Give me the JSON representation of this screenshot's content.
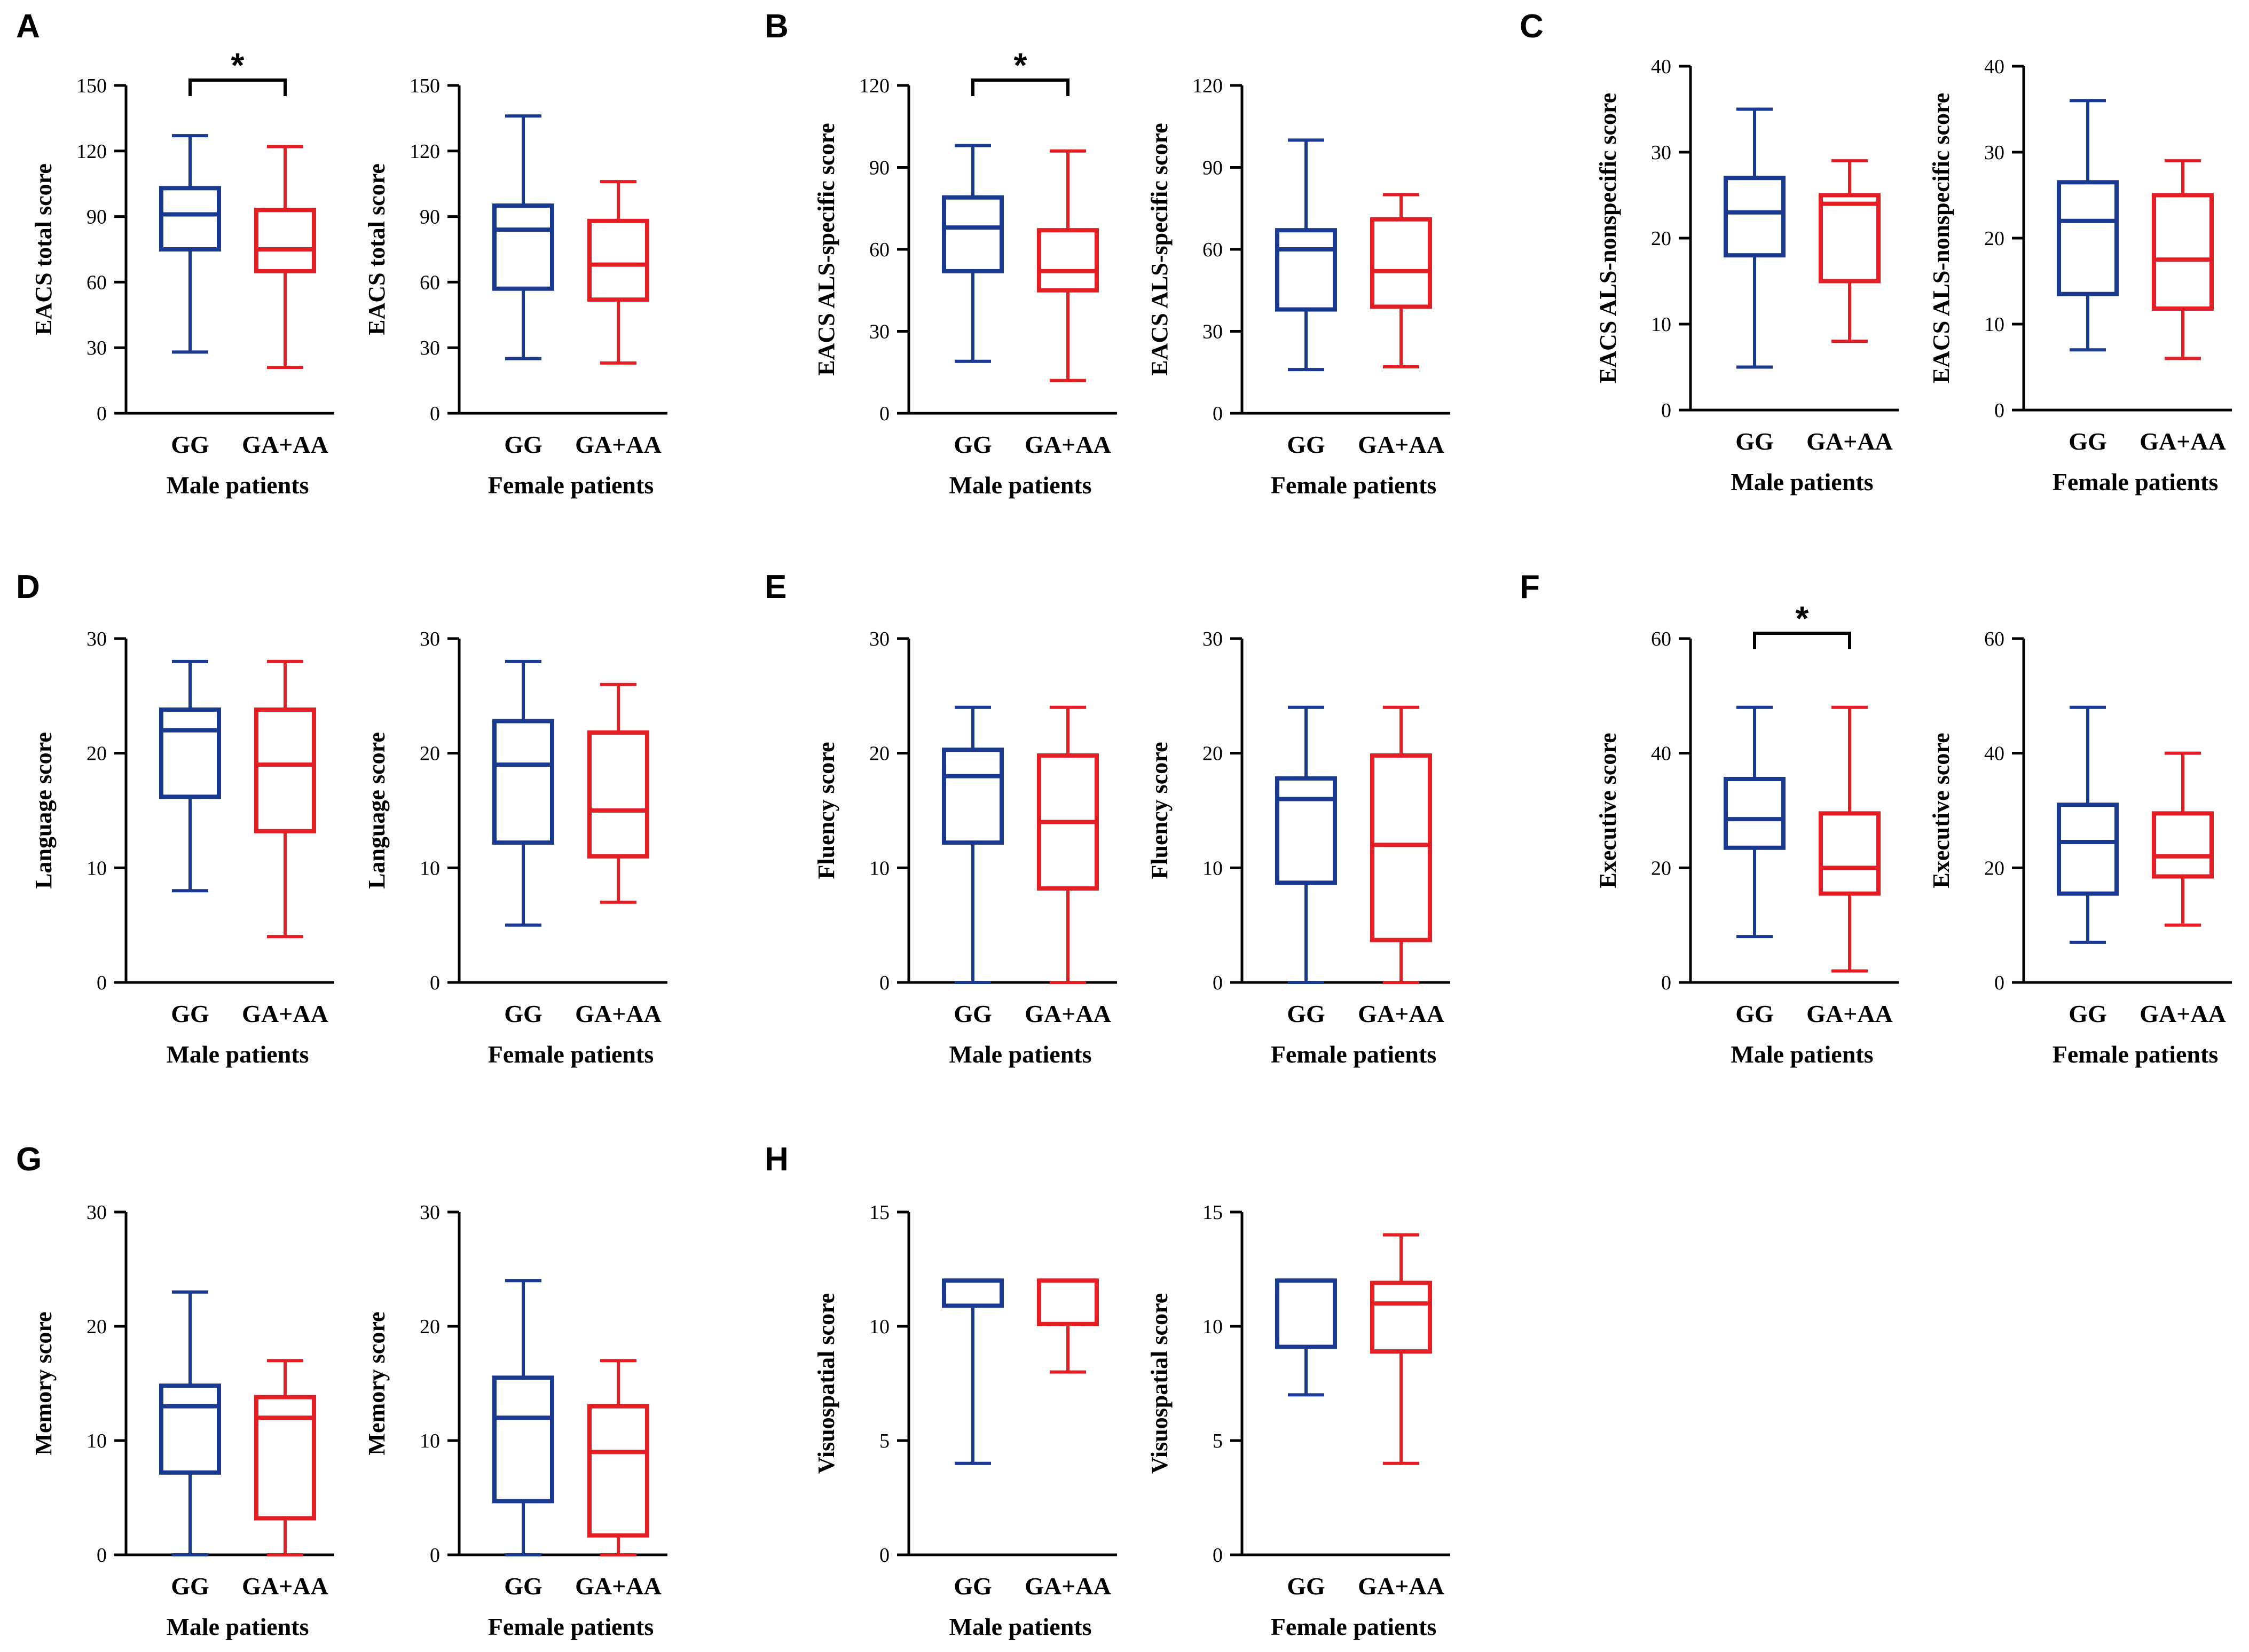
{
  "figure": {
    "colors": {
      "GG": "#1a3a8f",
      "GA+AA": "#e31e24",
      "axis": "#000000"
    }
  },
  "chart_data": [
    {
      "type": "box",
      "panel": "A",
      "group": "Male patients",
      "ylabel": "EACS total score",
      "ylim": [
        0,
        150
      ],
      "yticks": [
        0,
        30,
        60,
        90,
        120,
        150
      ],
      "categories": [
        "GG",
        "GA+AA"
      ],
      "boxes": [
        {
          "min": 28,
          "q1": 75,
          "median": 91,
          "q3": 103,
          "max": 127
        },
        {
          "min": 21,
          "q1": 65,
          "median": 75,
          "q3": 93,
          "max": 122
        }
      ],
      "significance": "*"
    },
    {
      "type": "box",
      "panel": "",
      "group": "Female patients",
      "ylabel": "EACS total score",
      "ylim": [
        0,
        150
      ],
      "yticks": [
        0,
        30,
        60,
        90,
        120,
        150
      ],
      "categories": [
        "GG",
        "GA+AA"
      ],
      "boxes": [
        {
          "min": 25,
          "q1": 57,
          "median": 84,
          "q3": 95,
          "max": 136
        },
        {
          "min": 23,
          "q1": 52,
          "median": 68,
          "q3": 88,
          "max": 106
        }
      ],
      "significance": ""
    },
    {
      "type": "box",
      "panel": "B",
      "group": "Male patients",
      "ylabel": "EACS ALS-specific score",
      "ylim": [
        0,
        120
      ],
      "yticks": [
        0,
        30,
        60,
        90,
        120
      ],
      "categories": [
        "GG",
        "GA+AA"
      ],
      "boxes": [
        {
          "min": 19,
          "q1": 52,
          "median": 68,
          "q3": 79,
          "max": 98
        },
        {
          "min": 12,
          "q1": 45,
          "median": 52,
          "q3": 67,
          "max": 96
        }
      ],
      "significance": "*"
    },
    {
      "type": "box",
      "panel": "",
      "group": "Female patients",
      "ylabel": "EACS ALS-specific score",
      "ylim": [
        0,
        120
      ],
      "yticks": [
        0,
        30,
        60,
        90,
        120
      ],
      "categories": [
        "GG",
        "GA+AA"
      ],
      "boxes": [
        {
          "min": 16,
          "q1": 38,
          "median": 60,
          "q3": 67,
          "max": 100
        },
        {
          "min": 17,
          "q1": 39,
          "median": 52,
          "q3": 71,
          "max": 80
        }
      ],
      "significance": ""
    },
    {
      "type": "box",
      "panel": "C",
      "group": "Male patients",
      "ylabel": "EACS ALS-nonspecific score",
      "ylim": [
        0,
        40
      ],
      "yticks": [
        0,
        10,
        20,
        30,
        40
      ],
      "categories": [
        "GG",
        "GA+AA"
      ],
      "boxes": [
        {
          "min": 5,
          "q1": 18,
          "median": 23,
          "q3": 27,
          "max": 35
        },
        {
          "min": 8,
          "q1": 15,
          "median": 24,
          "q3": 25,
          "max": 29
        }
      ],
      "significance": ""
    },
    {
      "type": "box",
      "panel": "",
      "group": "Female patients",
      "ylabel": "EACS ALS-nonspecific score",
      "ylim": [
        0,
        40
      ],
      "yticks": [
        0,
        10,
        20,
        30,
        40
      ],
      "categories": [
        "GG",
        "GA+AA"
      ],
      "boxes": [
        {
          "min": 7,
          "q1": 13.5,
          "median": 22,
          "q3": 26.5,
          "max": 36
        },
        {
          "min": 6,
          "q1": 11.8,
          "median": 17.5,
          "q3": 25,
          "max": 29
        }
      ],
      "significance": ""
    },
    {
      "type": "box",
      "panel": "D",
      "group": "Male patients",
      "ylabel": "Language score",
      "ylim": [
        0,
        30
      ],
      "yticks": [
        0,
        10,
        20,
        30
      ],
      "categories": [
        "GG",
        "GA+AA"
      ],
      "boxes": [
        {
          "min": 8,
          "q1": 16.2,
          "median": 22,
          "q3": 23.8,
          "max": 28
        },
        {
          "min": 4,
          "q1": 13.2,
          "median": 19,
          "q3": 23.8,
          "max": 28
        }
      ],
      "significance": ""
    },
    {
      "type": "box",
      "panel": "",
      "group": "Female patients",
      "ylabel": "Language score",
      "ylim": [
        0,
        30
      ],
      "yticks": [
        0,
        10,
        20,
        30
      ],
      "categories": [
        "GG",
        "GA+AA"
      ],
      "boxes": [
        {
          "min": 5,
          "q1": 12.2,
          "median": 19,
          "q3": 22.8,
          "max": 28
        },
        {
          "min": 7,
          "q1": 11,
          "median": 15,
          "q3": 21.8,
          "max": 26
        }
      ],
      "significance": ""
    },
    {
      "type": "box",
      "panel": "E",
      "group": "Male patients",
      "ylabel": "Fluency score",
      "ylim": [
        0,
        30
      ],
      "yticks": [
        0,
        10,
        20,
        30
      ],
      "categories": [
        "GG",
        "GA+AA"
      ],
      "boxes": [
        {
          "min": 0,
          "q1": 12.2,
          "median": 18,
          "q3": 20.3,
          "max": 24
        },
        {
          "min": 0,
          "q1": 8.2,
          "median": 14,
          "q3": 19.8,
          "max": 24
        }
      ],
      "significance": ""
    },
    {
      "type": "box",
      "panel": "",
      "group": "Female patients",
      "ylabel": "Fluency score",
      "ylim": [
        0,
        30
      ],
      "yticks": [
        0,
        10,
        20,
        30
      ],
      "categories": [
        "GG",
        "GA+AA"
      ],
      "boxes": [
        {
          "min": 0,
          "q1": 8.7,
          "median": 16,
          "q3": 17.8,
          "max": 24
        },
        {
          "min": 0,
          "q1": 3.7,
          "median": 12,
          "q3": 19.8,
          "max": 24
        }
      ],
      "significance": ""
    },
    {
      "type": "box",
      "panel": "F",
      "group": "Male patients",
      "ylabel": "Executive score",
      "ylim": [
        0,
        60
      ],
      "yticks": [
        0,
        20,
        40,
        60
      ],
      "categories": [
        "GG",
        "GA+AA"
      ],
      "boxes": [
        {
          "min": 8,
          "q1": 23.5,
          "median": 28.5,
          "q3": 35.5,
          "max": 48
        },
        {
          "min": 2,
          "q1": 15.5,
          "median": 20,
          "q3": 29.5,
          "max": 48
        }
      ],
      "significance": "*"
    },
    {
      "type": "box",
      "panel": "",
      "group": "Female patients",
      "ylabel": "Executive score",
      "ylim": [
        0,
        60
      ],
      "yticks": [
        0,
        20,
        40,
        60
      ],
      "categories": [
        "GG",
        "GA+AA"
      ],
      "boxes": [
        {
          "min": 7,
          "q1": 15.5,
          "median": 24.5,
          "q3": 31,
          "max": 48
        },
        {
          "min": 10,
          "q1": 18.5,
          "median": 22,
          "q3": 29.5,
          "max": 40
        }
      ],
      "significance": ""
    },
    {
      "type": "box",
      "panel": "G",
      "group": "Male patients",
      "ylabel": "Memory score",
      "ylim": [
        0,
        30
      ],
      "yticks": [
        0,
        10,
        20,
        30
      ],
      "categories": [
        "GG",
        "GA+AA"
      ],
      "boxes": [
        {
          "min": 0,
          "q1": 7.2,
          "median": 13,
          "q3": 14.8,
          "max": 23
        },
        {
          "min": 0,
          "q1": 3.2,
          "median": 12,
          "q3": 13.8,
          "max": 17
        }
      ],
      "significance": ""
    },
    {
      "type": "box",
      "panel": "",
      "group": "Female patients",
      "ylabel": "Memory score",
      "ylim": [
        0,
        30
      ],
      "yticks": [
        0,
        10,
        20,
        30
      ],
      "categories": [
        "GG",
        "GA+AA"
      ],
      "boxes": [
        {
          "min": 0,
          "q1": 4.7,
          "median": 12,
          "q3": 15.5,
          "max": 24
        },
        {
          "min": 0,
          "q1": 1.7,
          "median": 9,
          "q3": 13,
          "max": 17
        }
      ],
      "significance": ""
    },
    {
      "type": "box",
      "panel": "H",
      "group": "Male patients",
      "ylabel": "Visuospatial score",
      "ylim": [
        0,
        15
      ],
      "yticks": [
        0,
        5,
        10,
        15
      ],
      "categories": [
        "GG",
        "GA+AA"
      ],
      "boxes": [
        {
          "min": 4,
          "q1": 10.9,
          "median": 12,
          "q3": 12,
          "max": 12
        },
        {
          "min": 8,
          "q1": 10.1,
          "median": 12,
          "q3": 12,
          "max": 12
        }
      ],
      "significance": ""
    },
    {
      "type": "box",
      "panel": "",
      "group": "Female patients",
      "ylabel": "Visuospatial score",
      "ylim": [
        0,
        15
      ],
      "yticks": [
        0,
        5,
        10,
        15
      ],
      "categories": [
        "GG",
        "GA+AA"
      ],
      "boxes": [
        {
          "min": 7,
          "q1": 9.1,
          "median": 12,
          "q3": 12,
          "max": 12
        },
        {
          "min": 4,
          "q1": 8.9,
          "median": 11,
          "q3": 11.9,
          "max": 14
        }
      ],
      "significance": ""
    }
  ]
}
